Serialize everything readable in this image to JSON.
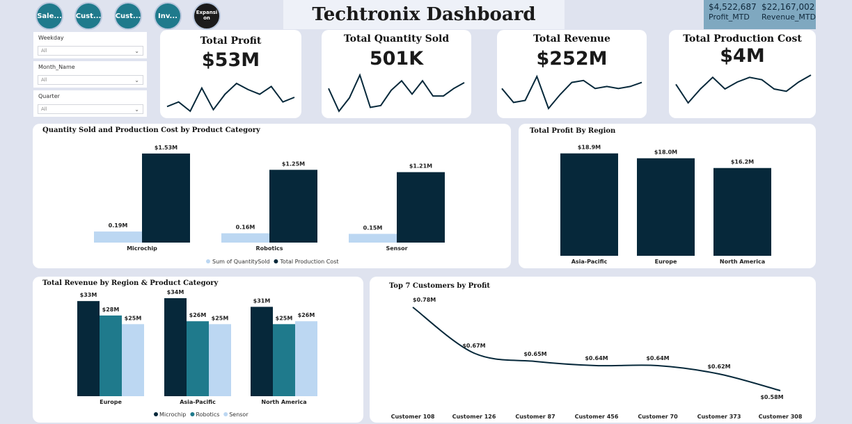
{
  "nav": {
    "buttons": [
      "Sale...",
      "Cust...",
      "Cust...",
      "Inv...",
      "Expansi on"
    ]
  },
  "header": {
    "title": "Techtronix Dashboard"
  },
  "mtd": {
    "profit_value": "$4,522,687",
    "profit_label": "Profit_MTD",
    "revenue_value": "$22,167,002",
    "revenue_label": "Revenue_MTD"
  },
  "slicers": [
    {
      "label": "Weekday",
      "value": "All"
    },
    {
      "label": "Month_Name",
      "value": "All"
    },
    {
      "label": "Quarter",
      "value": "All"
    }
  ],
  "kpis": [
    {
      "title": "Total Profit",
      "value": "$53M",
      "spark": [
        5,
        8,
        2,
        17,
        3,
        13,
        20,
        16,
        13,
        18,
        8,
        11
      ]
    },
    {
      "title": "Total Quantity Sold",
      "value": "501K",
      "spark": [
        13,
        1,
        8,
        20,
        3,
        4,
        12,
        17,
        10,
        17,
        9,
        9,
        13,
        16
      ]
    },
    {
      "title": "Total Revenue",
      "value": "$252M",
      "spark": [
        12,
        5,
        6,
        18,
        2,
        9,
        15,
        16,
        12,
        13,
        12,
        13,
        15
      ]
    },
    {
      "title": "Total Production Cost",
      "value": "$4M",
      "spark": [
        14,
        6,
        12,
        17,
        12,
        15,
        17,
        16,
        12,
        11,
        15,
        18
      ]
    }
  ],
  "chart_data": [
    {
      "type": "bar",
      "title": "Quantity Sold and Production Cost by Product Category",
      "categories": [
        "Microchip",
        "Robotics",
        "Sensor"
      ],
      "series": [
        {
          "name": "Sum of QuantitySold",
          "values": [
            0.19,
            0.16,
            0.15
          ],
          "labels": [
            "0.19M",
            "0.16M",
            "0.15M"
          ],
          "color": "#bcd7f2"
        },
        {
          "name": "Total Production Cost",
          "values": [
            1.53,
            1.25,
            1.21
          ],
          "labels": [
            "$1.53M",
            "$1.25M",
            "$1.21M"
          ],
          "color": "#06283a"
        }
      ],
      "ylim": [
        0,
        1.6
      ],
      "legend": "bottom"
    },
    {
      "type": "bar",
      "title": "Total Profit By Region",
      "categories": [
        "Asia-Pacific",
        "Europe",
        "North America"
      ],
      "values": [
        18.9,
        18.0,
        16.2
      ],
      "labels": [
        "$18.9M",
        "$18.0M",
        "$16.2M"
      ],
      "color": "#06283a",
      "ylim": [
        0,
        19.5
      ]
    },
    {
      "type": "bar",
      "title": "Total Revenue by Region & Product Category",
      "categories": [
        "Europe",
        "Asia-Pacific",
        "North America"
      ],
      "series": [
        {
          "name": "Microchip",
          "values": [
            33,
            34,
            31
          ],
          "labels": [
            "$33M",
            "$34M",
            "$31M"
          ],
          "color": "#06283a"
        },
        {
          "name": "Robotics",
          "values": [
            28,
            26,
            25
          ],
          "labels": [
            "$28M",
            "$26M",
            "$25M"
          ],
          "color": "#1f7a8c"
        },
        {
          "name": "Sensor",
          "values": [
            25,
            25,
            26
          ],
          "labels": [
            "$25M",
            "$25M",
            "$26M"
          ],
          "color": "#bcd7f2"
        }
      ],
      "ylim": [
        0,
        35
      ],
      "legend": "bottom"
    },
    {
      "type": "line",
      "title": "Top 7 Customers by Profit",
      "categories": [
        "Customer 108",
        "Customer 126",
        "Customer 87",
        "Customer 456",
        "Customer 70",
        "Customer 373",
        "Customer 308"
      ],
      "values": [
        0.78,
        0.67,
        0.65,
        0.64,
        0.64,
        0.62,
        0.58
      ],
      "labels": [
        "$0.78M",
        "$0.67M",
        "$0.65M",
        "$0.64M",
        "$0.64M",
        "$0.62M",
        "$0.58M"
      ],
      "color": "#06283a",
      "ylim": [
        0.57,
        0.79
      ]
    }
  ]
}
